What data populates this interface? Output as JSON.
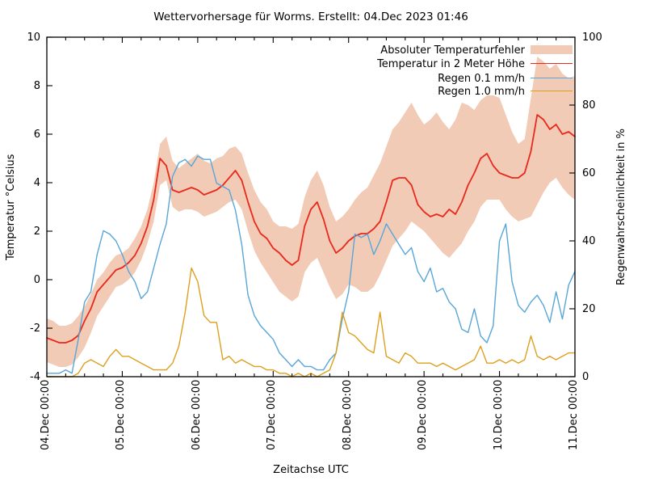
{
  "title": "Wettervorhersage für Worms. Erstellt: 04.Dec 2023 01:46",
  "axes": {
    "x": {
      "label": "Zeitachse UTC",
      "tick_labels": [
        "04.Dec 00:00",
        "05.Dec 00:00",
        "06.Dec 00:00",
        "07.Dec 00:00",
        "08.Dec 00:00",
        "09.Dec 00:00",
        "10.Dec 00:00",
        "11.Dec 00:00"
      ],
      "minor_tick_interval_hours": 6
    },
    "y_left": {
      "label": "Temperatur °Celsius",
      "ticks": [
        10,
        8,
        6,
        4,
        2,
        0,
        -2,
        -4
      ],
      "min": -4,
      "max": 10
    },
    "y_right": {
      "label": "Regenwahrscheinlichkeit in %",
      "ticks": [
        100,
        80,
        60,
        40,
        20,
        0
      ],
      "min": 0,
      "max": 100
    }
  },
  "legend": [
    {
      "label": "Absoluter Temperaturfehler",
      "swatch": "band",
      "color": "#f2cbb6"
    },
    {
      "label": "Temperatur in 2 Meter Höhe",
      "swatch": "line",
      "color": "#e8291c"
    },
    {
      "label": "Regen 0.1 mm/h",
      "swatch": "line",
      "color": "#58a6d7"
    },
    {
      "label": "Regen 1.0 mm/h",
      "swatch": "line",
      "color": "#dda01e"
    }
  ],
  "colors": {
    "band": "#f2cbb6",
    "temperature": "#e8291c",
    "rain01": "#58a6d7",
    "rain10": "#dda01e",
    "axis": "#000000",
    "background": "#ffffff"
  },
  "chart_data": {
    "type": "line",
    "title": "Wettervorhersage für Worms. Erstellt: 04.Dec 2023 01:46",
    "xlabel": "Zeitachse UTC",
    "ylabel_left": "Temperatur °Celsius",
    "ylabel_right": "Regenwahrscheinlichkeit in %",
    "ylim_left": [
      -4,
      10
    ],
    "ylim_right": [
      0,
      100
    ],
    "grid": false,
    "legend_position": "top-right-inside",
    "x_start_hour": 0,
    "x_end_hour": 168,
    "x_step_hours": 2,
    "x_range": [
      "04.Dec 00:00 UTC",
      "11.Dec 00:00 UTC"
    ],
    "series": [
      {
        "name": "Absoluter Temperaturfehler",
        "axis": "left",
        "style": "band",
        "upper": [
          -1.6,
          -1.7,
          -1.9,
          -1.9,
          -1.8,
          -1.5,
          -1.1,
          -0.6,
          0.0,
          0.3,
          0.7,
          1.0,
          1.1,
          1.3,
          1.7,
          2.2,
          2.9,
          4.0,
          5.6,
          5.9,
          4.9,
          4.6,
          4.8,
          5.0,
          5.2,
          4.9,
          4.8,
          5.0,
          5.1,
          5.4,
          5.5,
          5.2,
          4.4,
          3.7,
          3.2,
          2.9,
          2.4,
          2.2,
          2.2,
          2.1,
          2.3,
          3.4,
          4.1,
          4.5,
          3.9,
          3.0,
          2.4,
          2.6,
          2.9,
          3.3,
          3.6,
          3.8,
          4.3,
          4.8,
          5.5,
          6.2,
          6.5,
          6.9,
          7.3,
          6.8,
          6.4,
          6.6,
          6.9,
          6.5,
          6.2,
          6.6,
          7.3,
          7.2,
          7.0,
          7.4,
          7.6,
          7.6,
          7.5,
          6.8,
          6.1,
          5.6,
          5.8,
          7.5,
          9.2,
          9.0,
          8.7,
          8.9,
          8.5,
          8.3,
          8.4
        ],
        "lower": [
          -3.4,
          -3.5,
          -3.6,
          -3.6,
          -3.5,
          -3.2,
          -2.8,
          -2.2,
          -1.5,
          -1.1,
          -0.7,
          -0.3,
          -0.2,
          0.0,
          0.3,
          0.8,
          1.5,
          2.4,
          3.9,
          4.1,
          3.0,
          2.8,
          2.9,
          2.9,
          2.8,
          2.6,
          2.7,
          2.8,
          3.0,
          3.2,
          3.3,
          2.9,
          2.0,
          1.2,
          0.7,
          0.3,
          -0.1,
          -0.5,
          -0.7,
          -0.9,
          -0.7,
          0.3,
          0.7,
          0.9,
          0.3,
          -0.3,
          -0.8,
          -0.6,
          -0.2,
          -0.3,
          -0.5,
          -0.5,
          -0.3,
          0.2,
          0.8,
          1.4,
          1.7,
          2.0,
          2.4,
          2.2,
          2.0,
          1.7,
          1.4,
          1.1,
          0.9,
          1.2,
          1.5,
          2.0,
          2.4,
          3.0,
          3.3,
          3.3,
          3.3,
          2.9,
          2.6,
          2.4,
          2.5,
          2.6,
          3.1,
          3.6,
          4.0,
          4.2,
          3.8,
          3.5,
          3.3
        ]
      },
      {
        "name": "Temperatur in 2 Meter Höhe",
        "axis": "left",
        "style": "line",
        "values": [
          -2.4,
          -2.5,
          -2.6,
          -2.6,
          -2.5,
          -2.3,
          -1.7,
          -1.2,
          -0.5,
          -0.2,
          0.1,
          0.4,
          0.5,
          0.7,
          1.0,
          1.5,
          2.2,
          3.3,
          5.0,
          4.7,
          3.7,
          3.6,
          3.7,
          3.8,
          3.7,
          3.5,
          3.6,
          3.7,
          3.9,
          4.2,
          4.5,
          4.1,
          3.2,
          2.4,
          1.9,
          1.7,
          1.3,
          1.1,
          0.8,
          0.6,
          0.8,
          2.2,
          2.9,
          3.2,
          2.5,
          1.6,
          1.1,
          1.3,
          1.6,
          1.8,
          1.9,
          1.9,
          2.1,
          2.4,
          3.2,
          4.1,
          4.2,
          4.2,
          3.9,
          3.1,
          2.8,
          2.6,
          2.7,
          2.6,
          2.9,
          2.7,
          3.2,
          3.9,
          4.4,
          5.0,
          5.2,
          4.7,
          4.4,
          4.3,
          4.2,
          4.2,
          4.4,
          5.3,
          6.8,
          6.6,
          6.2,
          6.4,
          6.0,
          6.1,
          5.9
        ]
      },
      {
        "name": "Regen 0.1 mm/h",
        "axis": "right",
        "style": "line",
        "values": [
          1,
          1,
          1,
          2,
          1,
          11,
          22,
          25,
          36,
          43,
          42,
          40,
          36,
          31,
          28,
          23,
          25,
          32,
          39,
          45,
          59,
          63,
          64,
          62,
          65,
          64,
          64,
          57,
          56,
          55,
          49,
          39,
          24,
          18,
          15,
          13,
          11,
          7,
          5,
          3,
          5,
          3,
          3,
          2,
          2,
          5,
          7,
          17,
          25,
          42,
          41,
          42,
          36,
          40,
          45,
          42,
          39,
          36,
          38,
          31,
          28,
          32,
          25,
          26,
          22,
          20,
          14,
          13,
          20,
          12,
          10,
          15,
          40,
          45,
          28,
          21,
          19,
          22,
          24,
          21,
          16,
          25,
          17,
          27,
          31
        ]
      },
      {
        "name": "Regen 1.0 mm/h",
        "axis": "right",
        "style": "line",
        "values": [
          0,
          0,
          0,
          0,
          0,
          1,
          4,
          5,
          4,
          3,
          6,
          8,
          6,
          6,
          5,
          4,
          3,
          2,
          2,
          2,
          4,
          9,
          19,
          32,
          28,
          18,
          16,
          16,
          5,
          6,
          4,
          5,
          4,
          3,
          3,
          2,
          2,
          1,
          1,
          0,
          1,
          0,
          1,
          0,
          1,
          2,
          7,
          19,
          13,
          12,
          10,
          8,
          7,
          19,
          6,
          5,
          4,
          7,
          6,
          4,
          4,
          4,
          3,
          4,
          3,
          2,
          3,
          4,
          5,
          9,
          4,
          4,
          5,
          4,
          5,
          4,
          5,
          12,
          6,
          5,
          6,
          5,
          6,
          7,
          7
        ]
      }
    ]
  }
}
